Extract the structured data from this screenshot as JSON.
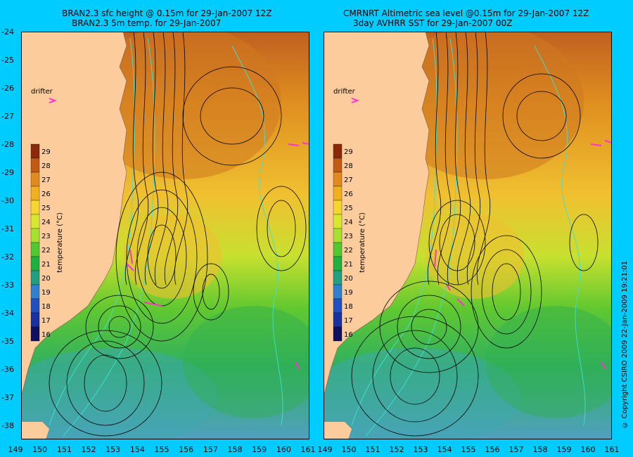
{
  "left_panel": {
    "title_line1": "BRAN2.3 sfc height @ 0.15m for 29-Jan-2007 12Z",
    "title_line2": "BRAN2.3 5m temp. for 29-Jan-2007"
  },
  "right_panel": {
    "title_line1": "CMRNRT Altimetric sea level  @0.15m  for 29-Jan-2007 12Z",
    "title_line2": "3day AVHRR SST for 29-Jan-2007 00Z"
  },
  "drifter_label": "drifter",
  "colorbar": {
    "label": "temperature (°C)",
    "ticks": [
      "29",
      "28",
      "27",
      "26",
      "25",
      "24",
      "23",
      "22",
      "21",
      "20",
      "19",
      "18",
      "17",
      "16"
    ],
    "colors": [
      "#8a2a0a",
      "#c25a15",
      "#e08a20",
      "#f0b020",
      "#f5d530",
      "#d8e830",
      "#a8e030",
      "#50c830",
      "#20b040",
      "#20a080",
      "#3080d0",
      "#2050c0",
      "#1830a0",
      "#101060"
    ]
  },
  "lat_labels": [
    "-24",
    "-25",
    "-26",
    "-27",
    "-28",
    "-29",
    "-30",
    "-31",
    "-32",
    "-33",
    "-34",
    "-35",
    "-36",
    "-37",
    "-38"
  ],
  "lon_labels": [
    "149",
    "150",
    "151",
    "152",
    "153",
    "154",
    "155",
    "156",
    "157",
    "158",
    "159",
    "160",
    "161"
  ],
  "copyright": "© Copyright CSIRO 2009   22-Jan-2009 19:21:01",
  "colors": {
    "background": "#00ccff",
    "land": "#fccc9c",
    "contour": "#000000",
    "bathymetry": "#40e0d0",
    "drifter": "#ff33cc"
  }
}
